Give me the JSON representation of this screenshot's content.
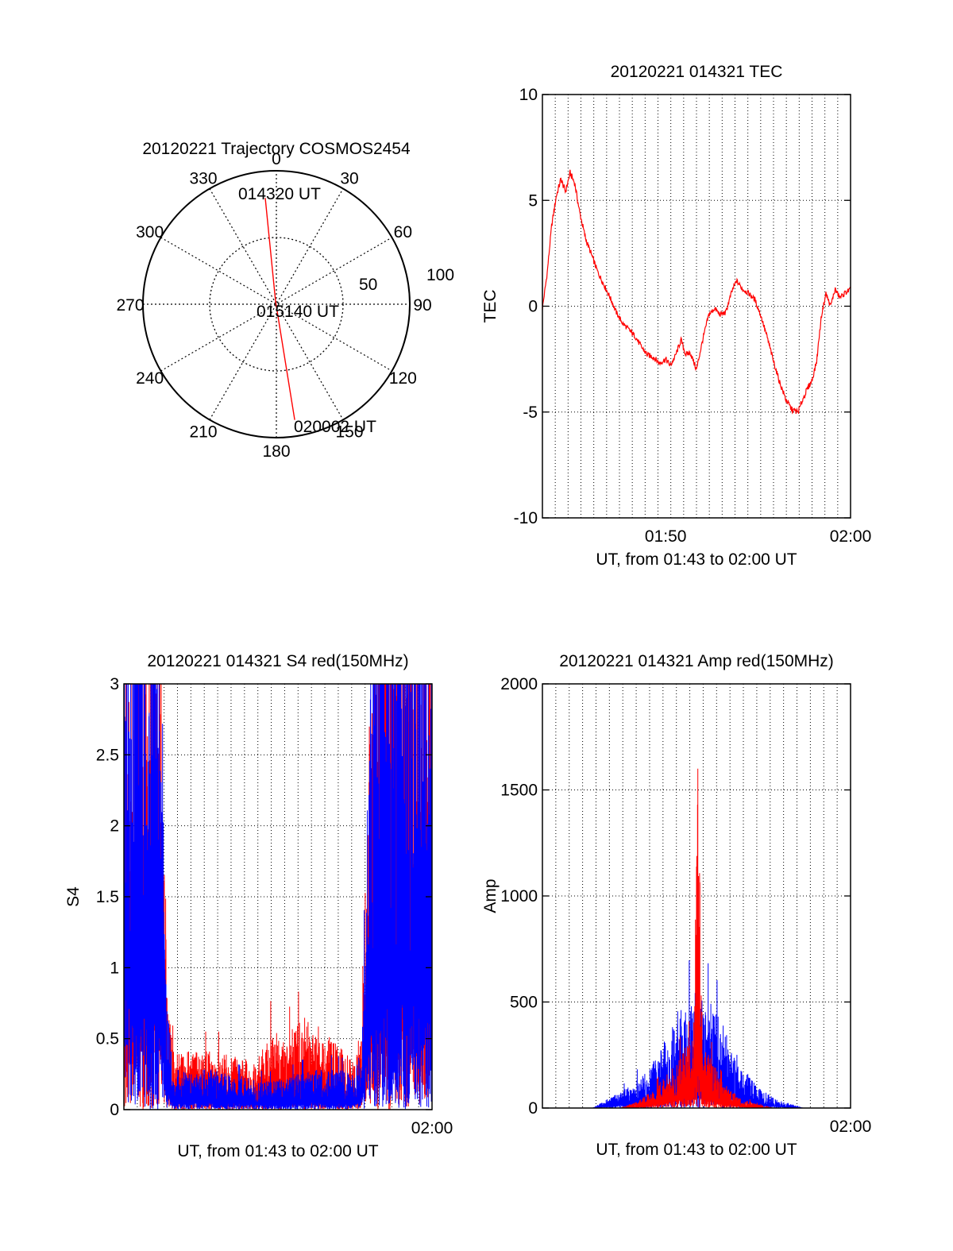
{
  "colors": {
    "red": "#ff0000",
    "blue": "#0000ff",
    "axis": "#000000"
  },
  "chart_data": [
    {
      "type": "polar",
      "title": "20120221 Trajectory COSMOS2454",
      "angle_labels": [
        "0",
        "30",
        "60",
        "90",
        "120",
        "150",
        "180",
        "210",
        "240",
        "270",
        "300",
        "330"
      ],
      "radial_labels": [
        "50",
        "100"
      ],
      "point_labels": [
        "014320 UT",
        "015140 UT",
        "020002 UT"
      ],
      "trajectory": [
        {
          "label": "014320 UT",
          "azimuth": 354,
          "elevation": 18
        },
        {
          "label": "015140 UT",
          "azimuth": 345,
          "elevation": 88
        },
        {
          "label": "020002 UT",
          "azimuth": 171,
          "elevation": 11
        }
      ]
    },
    {
      "type": "line",
      "title": "20120221 014321 TEC",
      "xlabel": "UT, from 01:43 to 02:00 UT",
      "ylabel": "TEC",
      "xlim": [
        "01:43:20",
        "02:00:00"
      ],
      "ylim": [
        -10,
        10
      ],
      "x_ticks": [
        "01:50",
        "02:00"
      ],
      "y_ticks": [
        "10",
        "5",
        "0",
        "-5",
        "-10"
      ],
      "grid": true,
      "series": [
        {
          "color": "red",
          "points": [
            [
              "01:43:20",
              -0.1
            ],
            [
              "01:43:35",
              1.5
            ],
            [
              "01:43:50",
              3.8
            ],
            [
              "01:44:05",
              5.2
            ],
            [
              "01:44:20",
              6.0
            ],
            [
              "01:44:35",
              5.4
            ],
            [
              "01:44:50",
              6.3
            ],
            [
              "01:45:05",
              5.8
            ],
            [
              "01:45:20",
              4.5
            ],
            [
              "01:45:40",
              3.2
            ],
            [
              "01:46:00",
              2.4
            ],
            [
              "01:46:20",
              1.6
            ],
            [
              "01:46:40",
              1.0
            ],
            [
              "01:47:00",
              0.4
            ],
            [
              "01:47:20",
              -0.3
            ],
            [
              "01:47:40",
              -0.8
            ],
            [
              "01:48:00",
              -1.1
            ],
            [
              "01:48:20",
              -1.4
            ],
            [
              "01:48:40",
              -1.9
            ],
            [
              "01:49:00",
              -2.3
            ],
            [
              "01:49:20",
              -2.4
            ],
            [
              "01:49:40",
              -2.7
            ],
            [
              "01:50:00",
              -2.5
            ],
            [
              "01:50:15",
              -2.8
            ],
            [
              "01:50:30",
              -2.4
            ],
            [
              "01:50:50",
              -1.6
            ],
            [
              "01:51:05",
              -2.3
            ],
            [
              "01:51:20",
              -2.2
            ],
            [
              "01:51:40",
              -3.0
            ],
            [
              "01:52:00",
              -1.6
            ],
            [
              "01:52:20",
              -0.4
            ],
            [
              "01:52:40",
              -0.1
            ],
            [
              "01:52:55",
              -0.4
            ],
            [
              "01:53:15",
              -0.3
            ],
            [
              "01:53:35",
              0.7
            ],
            [
              "01:53:50",
              1.2
            ],
            [
              "01:54:10",
              0.8
            ],
            [
              "01:54:30",
              0.6
            ],
            [
              "01:54:50",
              0.3
            ],
            [
              "01:55:10",
              -0.5
            ],
            [
              "01:55:30",
              -1.5
            ],
            [
              "01:55:50",
              -2.6
            ],
            [
              "01:56:10",
              -3.6
            ],
            [
              "01:56:30",
              -4.4
            ],
            [
              "01:56:50",
              -4.9
            ],
            [
              "01:57:10",
              -5.0
            ],
            [
              "01:57:25",
              -4.4
            ],
            [
              "01:57:40",
              -3.9
            ],
            [
              "01:57:55",
              -3.5
            ],
            [
              "01:58:10",
              -2.6
            ],
            [
              "01:58:25",
              -0.5
            ],
            [
              "01:58:40",
              0.6
            ],
            [
              "01:58:55",
              0.0
            ],
            [
              "01:59:10",
              0.8
            ],
            [
              "01:59:25",
              0.4
            ],
            [
              "01:59:40",
              0.6
            ],
            [
              "02:00:00",
              0.8
            ]
          ]
        }
      ]
    },
    {
      "type": "line",
      "title": "20120221 014321 S4 red(150MHz)",
      "xlabel": "UT, from 01:43 to 02:00 UT",
      "ylabel": "S4",
      "xlim": [
        "01:43:20",
        "02:00:00"
      ],
      "ylim": [
        0,
        3
      ],
      "x_ticks": [
        "02:00"
      ],
      "y_ticks": [
        "3",
        "2.5",
        "2",
        "1.5",
        "1",
        "0.5",
        "0"
      ],
      "grid": true,
      "series": [
        {
          "color": "red",
          "points": [
            [
              "01:43:20",
              1.8
            ],
            [
              "01:44:00",
              2.4
            ],
            [
              "01:44:45",
              2.2
            ],
            [
              "01:45:20",
              2.0
            ],
            [
              "01:45:40",
              0.6
            ],
            [
              "01:46:00",
              0.25
            ],
            [
              "01:47:30",
              0.25
            ],
            [
              "01:49:00",
              0.25
            ],
            [
              "01:50:30",
              0.2
            ],
            [
              "01:51:15",
              0.35
            ],
            [
              "01:52:00",
              0.3
            ],
            [
              "01:53:00",
              0.4
            ],
            [
              "01:54:00",
              0.35
            ],
            [
              "01:55:00",
              0.28
            ],
            [
              "01:55:50",
              0.2
            ],
            [
              "01:56:10",
              0.4
            ],
            [
              "01:56:40",
              1.8
            ],
            [
              "01:57:20",
              2.5
            ],
            [
              "02:00:00",
              2.4
            ]
          ]
        },
        {
          "color": "blue",
          "points": [
            [
              "01:43:20",
              2.6
            ],
            [
              "01:44:00",
              2.7
            ],
            [
              "01:44:45",
              2.5
            ],
            [
              "01:45:20",
              2.2
            ],
            [
              "01:45:40",
              0.5
            ],
            [
              "01:46:00",
              0.18
            ],
            [
              "01:47:00",
              0.16
            ],
            [
              "01:48:00",
              0.18
            ],
            [
              "01:49:00",
              0.15
            ],
            [
              "01:50:00",
              0.14
            ],
            [
              "01:51:00",
              0.12
            ],
            [
              "01:52:00",
              0.13
            ],
            [
              "01:53:00",
              0.16
            ],
            [
              "01:54:00",
              0.18
            ],
            [
              "01:55:00",
              0.17
            ],
            [
              "01:55:50",
              0.15
            ],
            [
              "01:56:10",
              0.3
            ],
            [
              "01:56:40",
              2.0
            ],
            [
              "01:57:20",
              2.7
            ],
            [
              "02:00:00",
              2.6
            ]
          ]
        }
      ]
    },
    {
      "type": "line",
      "title": "20120221 014321 Amp red(150MHz)",
      "xlabel": "UT, from 01:43 to 02:00 UT",
      "ylabel": "Amp",
      "xlim": [
        "01:43:20",
        "02:00:00"
      ],
      "ylim": [
        0,
        2000
      ],
      "x_ticks": [
        "02:00"
      ],
      "y_ticks": [
        "2000",
        "1500",
        "1000",
        "500",
        "0"
      ],
      "grid": true,
      "series": [
        {
          "color": "blue",
          "points": [
            [
              "01:43:20",
              0
            ],
            [
              "01:46:00",
              0
            ],
            [
              "01:47:00",
              30
            ],
            [
              "01:48:00",
              60
            ],
            [
              "01:49:00",
              110
            ],
            [
              "01:50:00",
              200
            ],
            [
              "01:50:40",
              280
            ],
            [
              "01:51:30",
              330
            ],
            [
              "01:52:10",
              320
            ],
            [
              "01:52:50",
              270
            ],
            [
              "01:53:30",
              190
            ],
            [
              "01:54:10",
              120
            ],
            [
              "01:55:00",
              60
            ],
            [
              "01:56:00",
              25
            ],
            [
              "01:57:30",
              0
            ],
            [
              "02:00:00",
              0
            ]
          ]
        },
        {
          "color": "red",
          "points": [
            [
              "01:43:20",
              0
            ],
            [
              "01:47:30",
              0
            ],
            [
              "01:48:30",
              20
            ],
            [
              "01:49:30",
              60
            ],
            [
              "01:50:30",
              130
            ],
            [
              "01:51:00",
              170
            ],
            [
              "01:51:30",
              200
            ],
            [
              "01:51:45",
              1000
            ],
            [
              "01:52:00",
              180
            ],
            [
              "01:52:30",
              140
            ],
            [
              "01:53:00",
              80
            ],
            [
              "01:54:00",
              30
            ],
            [
              "01:55:00",
              10
            ],
            [
              "01:56:00",
              0
            ],
            [
              "02:00:00",
              0
            ]
          ]
        }
      ]
    }
  ]
}
